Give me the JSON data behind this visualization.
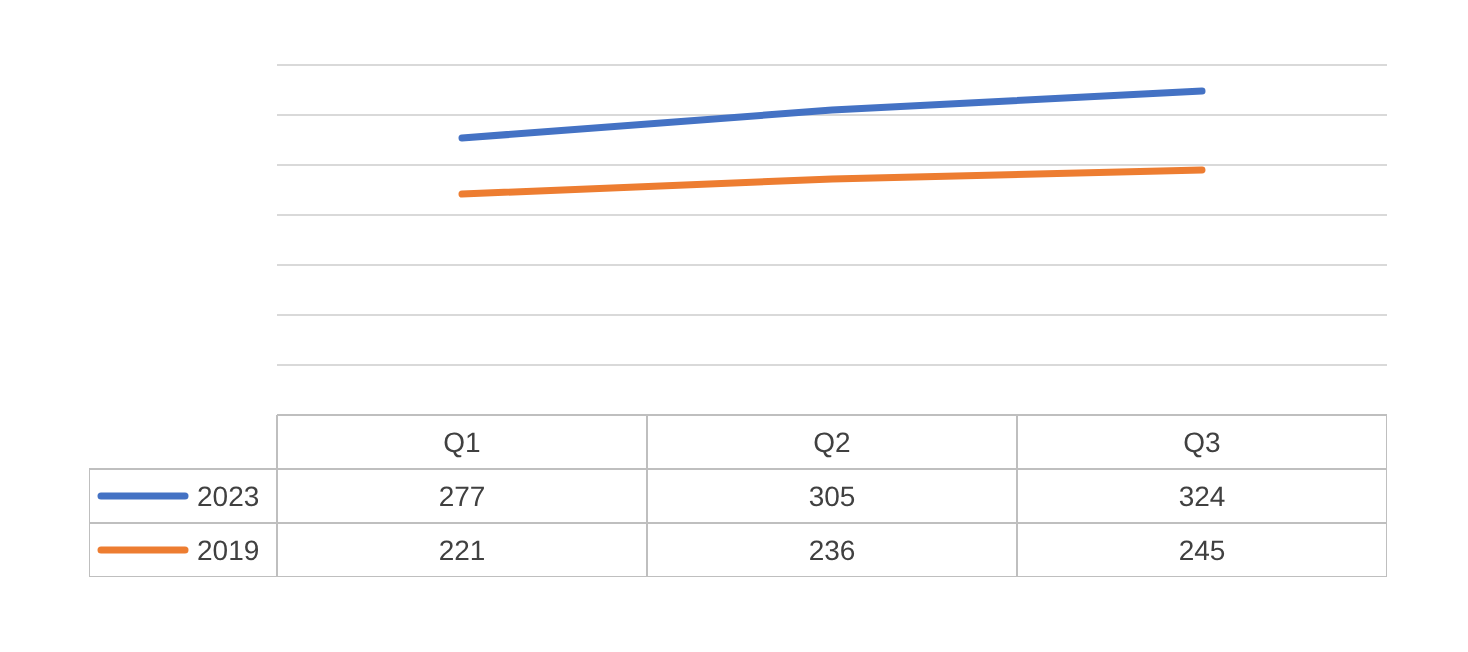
{
  "chart_data": {
    "type": "line",
    "categories": [
      "Q1",
      "Q2",
      "Q3"
    ],
    "series": [
      {
        "name": "2023",
        "color": "#4472c4",
        "values": [
          277,
          305,
          324
        ]
      },
      {
        "name": "2019",
        "color": "#ed7d31",
        "values": [
          221,
          236,
          245
        ]
      }
    ],
    "ylim": [
      0,
      350
    ],
    "yticks": [
      {
        "value": 0,
        "label": null
      },
      {
        "value": 50,
        "label": null
      },
      {
        "value": 100,
        "label": null
      },
      {
        "value": 150,
        "label": null
      },
      {
        "value": 200,
        "label": null
      },
      {
        "value": 250,
        "label": null
      },
      {
        "value": 300,
        "label": null
      },
      {
        "value": 350,
        "label": null
      }
    ],
    "tick_labels": false,
    "grid": "y",
    "legend": "bottom",
    "data_labels": true,
    "marker": "none",
    "line_style": "solid"
  }
}
